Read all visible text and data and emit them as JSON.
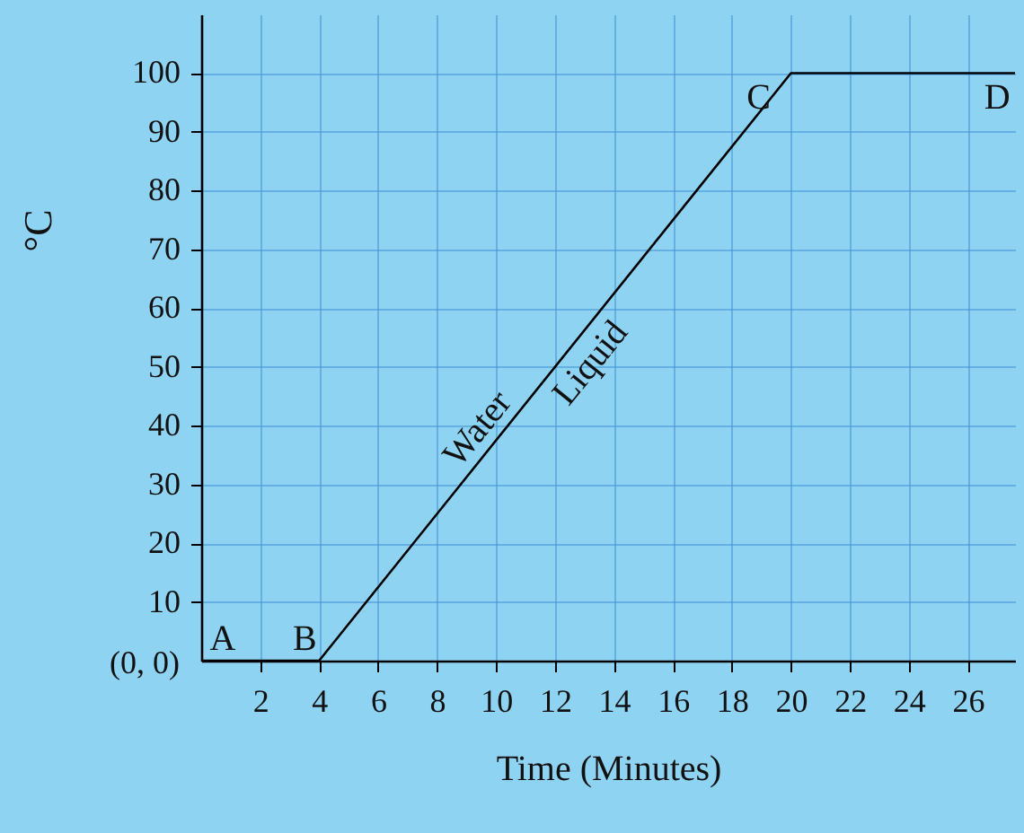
{
  "chart_data": {
    "type": "line",
    "xlabel": "Time (Minutes)",
    "ylabel": "°C",
    "x": [
      0,
      4,
      20,
      27.6
    ],
    "series": [
      {
        "color": "#000000",
        "values": [
          0,
          0,
          100,
          100
        ]
      }
    ],
    "xlim": [
      0,
      27.6
    ],
    "ylim": [
      0,
      110
    ],
    "xticks": [
      2,
      4,
      6,
      8,
      10,
      12,
      14,
      16,
      18,
      20,
      22,
      24,
      26
    ],
    "yticks": [
      10,
      20,
      30,
      40,
      50,
      60,
      70,
      80,
      90,
      100
    ],
    "grid": true,
    "marker": "none",
    "line_style": "solid",
    "annotations": [
      {
        "text": "A",
        "x": 0,
        "y": 0
      },
      {
        "text": "B",
        "x": 4,
        "y": 0
      },
      {
        "text": "C",
        "x": 20,
        "y": 100
      },
      {
        "text": "D",
        "x": 27,
        "y": 100
      },
      {
        "text": "Water",
        "x": 10.4,
        "y": 40
      },
      {
        "text": "Liquid",
        "x": 12,
        "y": 50
      },
      "(0, 0)"
    ]
  }
}
